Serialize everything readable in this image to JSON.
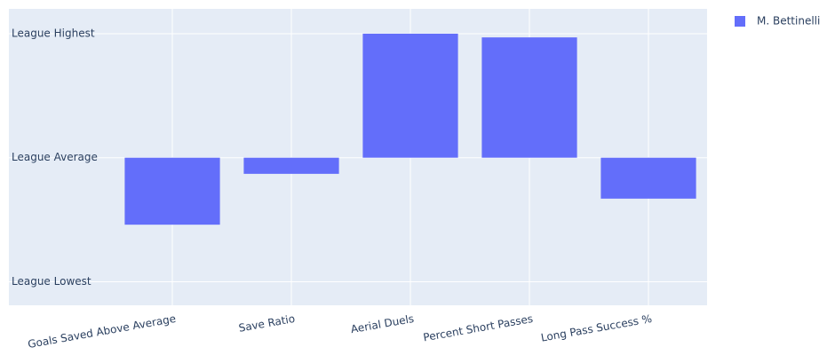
{
  "chart_data": {
    "type": "bar",
    "categories": [
      "Goals Saved Above Average",
      "Save Ratio",
      "Aerial Duels",
      "Percent Short Passes",
      "Long Pass Success %"
    ],
    "series": [
      {
        "name": "M. Bettinelli",
        "color": "#636efa",
        "values": [
          -0.54,
          -0.13,
          1.0,
          0.97,
          -0.33
        ]
      }
    ],
    "ylim": [
      -1.19,
      1.2
    ],
    "yticks": [
      {
        "value": -1,
        "label": "League Lowest"
      },
      {
        "value": 0,
        "label": "League Average"
      },
      {
        "value": 1,
        "label": "League Highest"
      }
    ],
    "grid": true
  }
}
